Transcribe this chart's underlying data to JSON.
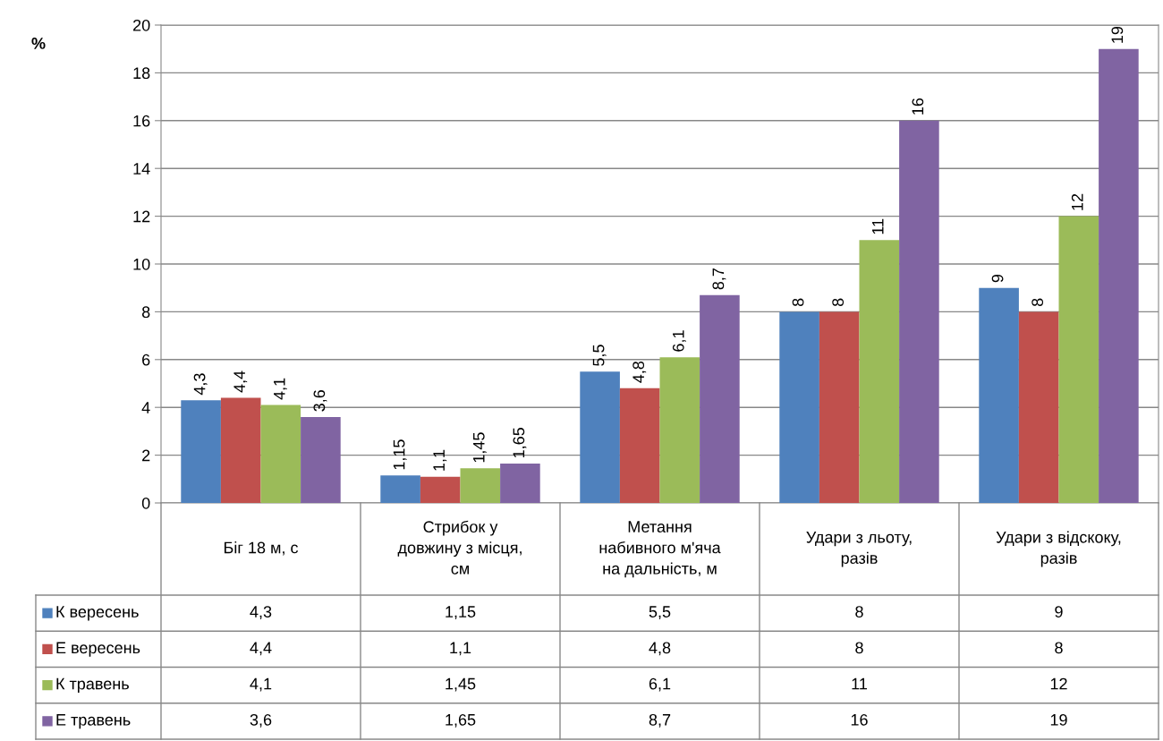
{
  "chart_data": {
    "type": "bar",
    "annotations": [
      "%"
    ],
    "legend": "bottom left",
    "categories": [
      "Біг 18 м, с",
      "Стрибок у\nдовжину з місця,\nсм",
      "Метання\nнабивного м'яча\nна дальність, м",
      "Удари з льоту,\nразів",
      "Удари з відскоку,\nразів"
    ],
    "series": [
      {
        "name": "К вересень",
        "color": "#4f81bd",
        "values": [
          4.3,
          1.15,
          5.5,
          8,
          9
        ],
        "value_labels": [
          "4,3",
          "1,15",
          "5,5",
          "8",
          "9"
        ]
      },
      {
        "name": "Е вересень",
        "color": "#c0504d",
        "values": [
          4.4,
          1.1,
          4.8,
          8,
          8
        ],
        "value_labels": [
          "4,4",
          "1,1",
          "4,8",
          "8",
          "8"
        ]
      },
      {
        "name": "К травень",
        "color": "#9bbb59",
        "values": [
          4.1,
          1.45,
          6.1,
          11,
          12
        ],
        "value_labels": [
          "4,1",
          "1,45",
          "6,1",
          "11",
          "12"
        ]
      },
      {
        "name": "Е травень",
        "color": "#8064a2",
        "values": [
          3.6,
          1.65,
          8.7,
          16,
          19
        ],
        "value_labels": [
          "3,6",
          "1,65",
          "8,7",
          "16",
          "19"
        ]
      }
    ],
    "ylim": [
      0,
      20
    ],
    "yticks": [
      0,
      2,
      4,
      6,
      8,
      10,
      12,
      14,
      16,
      18,
      20
    ],
    "grid": "y"
  }
}
